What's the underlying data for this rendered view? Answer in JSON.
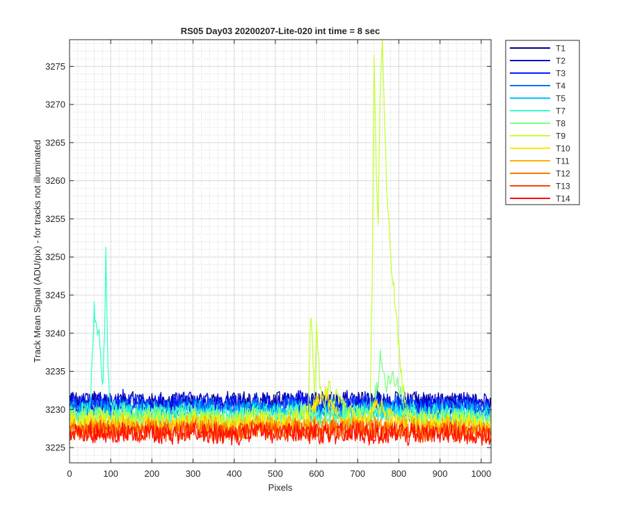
{
  "chart_data": {
    "type": "line",
    "title": "RS05 Day03 20200207-Lite-020 int time = 8 sec",
    "xlabel": "Pixels",
    "ylabel": "Track Mean Signal (ADU/pix) - for tracks not illuminated",
    "xlim": [
      0,
      1024
    ],
    "ylim": [
      3223,
      3278.5
    ],
    "xticks": [
      0,
      100,
      200,
      300,
      400,
      500,
      600,
      700,
      800,
      900,
      1000
    ],
    "yticks": [
      3225,
      3230,
      3235,
      3240,
      3245,
      3250,
      3255,
      3260,
      3265,
      3270,
      3275
    ],
    "grid": "major and minor",
    "legend_position": "outside-right",
    "x_points": [
      0,
      10,
      20,
      30,
      40,
      50,
      55,
      60,
      65,
      70,
      75,
      80,
      85,
      88,
      92,
      95,
      100,
      110,
      120,
      130,
      150,
      200,
      250,
      300,
      350,
      400,
      450,
      500,
      550,
      580,
      585,
      590,
      595,
      600,
      610,
      620,
      630,
      640,
      650,
      660,
      680,
      700,
      720,
      730,
      735,
      740,
      745,
      750,
      755,
      760,
      765,
      770,
      780,
      790,
      800,
      810,
      820,
      830,
      850,
      900,
      950,
      1000,
      1024
    ],
    "series": [
      {
        "name": "T1",
        "color": "#00008f",
        "values": [
          3230.8,
          3231.4,
          3230.6,
          3231.1,
          3230.9,
          3231.3,
          3230.7,
          3231.2,
          3230.8,
          3231.0,
          3231.4,
          3230.6,
          3231.1,
          3230.9,
          3231.2,
          3230.7,
          3231.0,
          3230.8,
          3231.3,
          3230.9,
          3231.1,
          3230.8,
          3231.2,
          3230.7,
          3231.0,
          3231.3,
          3230.8,
          3231.1,
          3230.9,
          3231.2,
          3230.7,
          3231.0,
          3231.4,
          3230.8,
          3231.1,
          3230.9,
          3231.3,
          3230.7,
          3231.0,
          3231.2,
          3230.8,
          3231.1,
          3230.9,
          3231.3,
          3230.7,
          3231.0,
          3231.2,
          3230.8,
          3231.4,
          3230.9,
          3231.1,
          3230.7,
          3231.0,
          3231.3,
          3230.8,
          3231.1,
          3230.9,
          3231.2,
          3230.7,
          3231.0,
          3230.9,
          3230.8,
          3230.6
        ]
      },
      {
        "name": "T2",
        "color": "#0000d5",
        "values": [
          3231.2,
          3230.6,
          3231.5,
          3230.9,
          3231.3,
          3230.8,
          3231.1,
          3231.4,
          3230.7,
          3231.2,
          3230.9,
          3231.5,
          3230.8,
          3231.1,
          3230.7,
          3231.3,
          3230.9,
          3231.2,
          3230.8,
          3231.4,
          3230.7,
          3231.1,
          3230.9,
          3231.3,
          3230.8,
          3231.2,
          3231.0,
          3230.7,
          3231.4,
          3230.9,
          3231.2,
          3230.8,
          3231.1,
          3231.5,
          3230.7,
          3231.2,
          3230.9,
          3231.3,
          3230.8,
          3231.1,
          3231.4,
          3230.7,
          3231.2,
          3230.9,
          3231.3,
          3230.8,
          3231.1,
          3231.4,
          3230.7,
          3231.2,
          3230.9,
          3231.3,
          3230.8,
          3231.1,
          3230.9,
          3231.2,
          3230.7,
          3231.0,
          3231.3,
          3230.8,
          3231.1,
          3230.9,
          3230.7
        ]
      },
      {
        "name": "T3",
        "color": "#001dff",
        "values": [
          3230.5,
          3231.0,
          3230.3,
          3230.8,
          3230.4,
          3230.9,
          3230.6,
          3230.2,
          3230.8,
          3230.5,
          3230.9,
          3230.3,
          3230.7,
          3230.4,
          3230.8,
          3230.5,
          3230.9,
          3230.3,
          3230.7,
          3230.5,
          3230.8,
          3230.4,
          3230.9,
          3230.3,
          3230.6,
          3230.8,
          3230.4,
          3230.7,
          3230.5,
          3230.9,
          3230.3,
          3230.6,
          3230.8,
          3230.4,
          3230.7,
          3230.5,
          3230.9,
          3230.3,
          3230.6,
          3230.8,
          3230.4,
          3230.7,
          3230.5,
          3230.9,
          3230.3,
          3230.6,
          3230.8,
          3230.4,
          3230.7,
          3230.5,
          3230.9,
          3230.3,
          3230.6,
          3230.8,
          3230.4,
          3230.7,
          3230.5,
          3230.8,
          3230.4,
          3230.6,
          3230.5,
          3230.3,
          3230.1
        ]
      },
      {
        "name": "T4",
        "color": "#0071ff",
        "values": [
          3230.1,
          3230.6,
          3229.9,
          3230.4,
          3230.0,
          3230.5,
          3230.2,
          3229.8,
          3230.4,
          3230.1,
          3230.6,
          3229.9,
          3230.3,
          3230.0,
          3230.5,
          3230.2,
          3229.9,
          3230.4,
          3230.1,
          3230.5,
          3229.9,
          3230.3,
          3230.0,
          3230.5,
          3230.2,
          3229.9,
          3230.4,
          3230.1,
          3230.5,
          3229.9,
          3230.3,
          3230.0,
          3230.5,
          3230.2,
          3229.9,
          3230.4,
          3230.1,
          3230.5,
          3229.9,
          3230.3,
          3230.0,
          3230.5,
          3230.2,
          3229.9,
          3230.4,
          3230.1,
          3230.5,
          3229.9,
          3230.3,
          3230.0,
          3230.5,
          3230.2,
          3229.9,
          3230.4,
          3230.1,
          3230.5,
          3229.9,
          3230.3,
          3230.0,
          3230.2,
          3230.1,
          3229.9,
          3229.7
        ]
      },
      {
        "name": "T5",
        "color": "#00c5ff",
        "values": [
          3229.6,
          3230.1,
          3229.4,
          3229.9,
          3229.5,
          3230.0,
          3229.7,
          3229.3,
          3229.9,
          3229.6,
          3230.1,
          3229.4,
          3229.8,
          3229.5,
          3230.0,
          3229.7,
          3229.4,
          3229.9,
          3229.6,
          3230.0,
          3229.4,
          3229.8,
          3229.5,
          3230.0,
          3229.7,
          3229.4,
          3229.9,
          3229.6,
          3230.0,
          3229.4,
          3229.8,
          3229.5,
          3230.0,
          3229.7,
          3229.4,
          3229.9,
          3229.6,
          3230.0,
          3229.4,
          3229.8,
          3229.5,
          3230.0,
          3229.7,
          3229.4,
          3229.9,
          3229.6,
          3230.0,
          3229.4,
          3229.8,
          3229.5,
          3230.0,
          3229.7,
          3229.4,
          3229.9,
          3229.6,
          3230.0,
          3229.4,
          3229.8,
          3229.5,
          3229.7,
          3229.6,
          3229.4,
          3229.2
        ]
      },
      {
        "name": "T7",
        "color": "#36ffc9",
        "values": [
          3229.3,
          3229.8,
          3229.1,
          3229.6,
          3229.2,
          3230.5,
          3236.0,
          3242.8,
          3240.5,
          3241.2,
          3236.5,
          3233.0,
          3239.0,
          3251.3,
          3240.0,
          3233.5,
          3230.8,
          3230.2,
          3229.6,
          3229.9,
          3229.3,
          3229.7,
          3229.2,
          3229.8,
          3229.4,
          3229.1,
          3229.6,
          3229.3,
          3229.7,
          3229.1,
          3229.5,
          3229.2,
          3229.7,
          3229.4,
          3229.1,
          3229.6,
          3229.3,
          3229.7,
          3229.1,
          3229.5,
          3229.2,
          3229.7,
          3229.4,
          3229.1,
          3229.6,
          3229.3,
          3229.7,
          3229.1,
          3229.5,
          3229.2,
          3229.7,
          3229.4,
          3229.1,
          3229.6,
          3229.3,
          3229.7,
          3229.1,
          3229.5,
          3229.2,
          3229.4,
          3229.3,
          3229.1,
          3228.9
        ]
      },
      {
        "name": "T8",
        "color": "#7dff82",
        "values": [
          3228.9,
          3229.4,
          3228.7,
          3229.2,
          3228.8,
          3229.3,
          3229.0,
          3228.6,
          3229.2,
          3228.9,
          3229.4,
          3228.7,
          3229.1,
          3228.8,
          3229.3,
          3229.0,
          3228.7,
          3229.2,
          3228.9,
          3229.3,
          3228.7,
          3229.1,
          3228.8,
          3229.3,
          3229.0,
          3228.7,
          3229.2,
          3228.9,
          3229.3,
          3228.7,
          3229.1,
          3228.8,
          3229.3,
          3229.0,
          3228.7,
          3229.2,
          3228.9,
          3229.3,
          3228.7,
          3229.1,
          3228.8,
          3229.3,
          3229.0,
          3228.7,
          3229.2,
          3230.5,
          3232.5,
          3234.0,
          3236.8,
          3235.5,
          3234.0,
          3232.8,
          3234.2,
          3234.0,
          3233.0,
          3230.5,
          3229.3,
          3229.1,
          3228.8,
          3229.0,
          3228.9,
          3228.7,
          3228.5
        ]
      },
      {
        "name": "T9",
        "color": "#c5ff36",
        "values": [
          3228.5,
          3229.0,
          3228.3,
          3228.8,
          3228.4,
          3228.9,
          3228.6,
          3228.2,
          3228.8,
          3228.5,
          3229.0,
          3228.3,
          3228.7,
          3228.4,
          3228.9,
          3228.6,
          3228.3,
          3228.8,
          3228.5,
          3228.9,
          3228.3,
          3228.7,
          3228.4,
          3228.9,
          3228.6,
          3228.3,
          3228.8,
          3228.5,
          3228.9,
          3230.0,
          3242.0,
          3238.0,
          3232.5,
          3240.5,
          3232.0,
          3230.0,
          3233.0,
          3231.5,
          3232.5,
          3230.5,
          3229.5,
          3229.0,
          3228.8,
          3230.0,
          3246.0,
          3276.0,
          3262.0,
          3255.0,
          3272.0,
          3278.5,
          3268.0,
          3260.0,
          3250.0,
          3244.5,
          3238.0,
          3233.0,
          3229.5,
          3228.7,
          3228.4,
          3228.6,
          3228.5,
          3228.3,
          3228.1
        ]
      },
      {
        "name": "T10",
        "color": "#ffea00",
        "values": [
          3228.1,
          3228.6,
          3227.9,
          3228.4,
          3228.0,
          3228.5,
          3228.2,
          3227.8,
          3228.4,
          3228.1,
          3228.6,
          3227.9,
          3228.3,
          3228.0,
          3228.5,
          3228.2,
          3227.9,
          3228.4,
          3228.1,
          3228.5,
          3227.9,
          3228.3,
          3228.0,
          3228.5,
          3228.2,
          3227.9,
          3228.4,
          3228.1,
          3228.5,
          3228.8,
          3230.5,
          3231.2,
          3229.8,
          3230.6,
          3231.5,
          3232.0,
          3231.0,
          3230.2,
          3229.5,
          3228.8,
          3228.3,
          3228.0,
          3228.5,
          3229.5,
          3230.2,
          3231.0,
          3230.5,
          3229.8,
          3230.3,
          3231.0,
          3230.0,
          3229.2,
          3228.8,
          3228.5,
          3228.2,
          3228.6,
          3227.9,
          3228.3,
          3228.0,
          3228.2,
          3228.1,
          3227.9,
          3227.7
        ]
      },
      {
        "name": "T11",
        "color": "#ffb000",
        "values": [
          3227.7,
          3228.2,
          3227.5,
          3228.0,
          3227.6,
          3228.1,
          3227.8,
          3227.4,
          3228.0,
          3227.7,
          3228.2,
          3227.5,
          3227.9,
          3227.6,
          3228.1,
          3227.8,
          3227.5,
          3228.0,
          3227.7,
          3228.1,
          3227.5,
          3227.9,
          3227.6,
          3228.1,
          3227.8,
          3227.5,
          3228.0,
          3227.7,
          3228.1,
          3227.5,
          3227.9,
          3227.6,
          3228.1,
          3227.8,
          3227.5,
          3228.0,
          3227.7,
          3228.1,
          3227.5,
          3227.9,
          3227.6,
          3228.1,
          3227.8,
          3227.5,
          3228.0,
          3227.7,
          3228.1,
          3227.5,
          3227.9,
          3227.6,
          3228.1,
          3227.8,
          3227.5,
          3228.0,
          3227.7,
          3228.1,
          3227.5,
          3227.9,
          3227.6,
          3227.8,
          3227.7,
          3227.5,
          3227.3
        ]
      },
      {
        "name": "T12",
        "color": "#ff7a00",
        "values": [
          3227.3,
          3227.8,
          3227.1,
          3227.6,
          3227.2,
          3227.7,
          3227.4,
          3227.0,
          3227.6,
          3227.3,
          3227.8,
          3227.1,
          3227.5,
          3227.2,
          3227.7,
          3227.4,
          3227.1,
          3227.6,
          3227.3,
          3227.7,
          3227.1,
          3227.5,
          3227.2,
          3227.7,
          3227.4,
          3227.1,
          3227.6,
          3227.3,
          3227.7,
          3227.1,
          3227.5,
          3227.2,
          3227.7,
          3227.4,
          3227.1,
          3227.6,
          3227.3,
          3227.7,
          3227.1,
          3227.5,
          3227.2,
          3227.7,
          3227.4,
          3227.1,
          3227.6,
          3227.3,
          3227.7,
          3227.1,
          3227.5,
          3227.2,
          3227.7,
          3227.4,
          3227.1,
          3227.6,
          3227.3,
          3227.7,
          3227.1,
          3227.5,
          3227.2,
          3227.4,
          3227.3,
          3227.1,
          3226.9
        ]
      },
      {
        "name": "T13",
        "color": "#ff4000",
        "values": [
          3227.0,
          3227.5,
          3226.8,
          3227.3,
          3226.9,
          3227.4,
          3227.1,
          3226.7,
          3227.3,
          3227.0,
          3227.5,
          3226.8,
          3227.2,
          3226.9,
          3227.4,
          3227.1,
          3226.8,
          3227.3,
          3227.0,
          3227.4,
          3226.8,
          3227.2,
          3226.9,
          3227.4,
          3227.1,
          3226.8,
          3227.3,
          3227.0,
          3227.4,
          3226.8,
          3227.2,
          3226.9,
          3227.4,
          3227.1,
          3226.8,
          3227.3,
          3227.0,
          3227.4,
          3226.8,
          3227.2,
          3226.9,
          3227.4,
          3227.1,
          3226.8,
          3227.3,
          3227.0,
          3227.4,
          3226.8,
          3227.2,
          3226.9,
          3227.4,
          3227.1,
          3226.8,
          3227.3,
          3227.0,
          3227.4,
          3226.8,
          3227.2,
          3226.9,
          3227.1,
          3227.0,
          3226.8,
          3226.6
        ]
      },
      {
        "name": "T14",
        "color": "#ff0a00",
        "values": [
          3226.7,
          3227.2,
          3226.5,
          3227.0,
          3226.6,
          3227.1,
          3226.8,
          3226.4,
          3227.0,
          3226.7,
          3227.2,
          3226.5,
          3226.9,
          3226.6,
          3227.1,
          3226.8,
          3226.5,
          3227.0,
          3226.7,
          3227.1,
          3226.5,
          3226.9,
          3226.6,
          3227.1,
          3226.8,
          3226.5,
          3227.0,
          3226.7,
          3227.1,
          3226.5,
          3226.9,
          3226.6,
          3227.1,
          3226.8,
          3226.5,
          3227.0,
          3226.7,
          3227.1,
          3226.5,
          3226.9,
          3226.6,
          3227.1,
          3226.8,
          3226.5,
          3227.0,
          3226.7,
          3227.1,
          3226.5,
          3226.9,
          3226.6,
          3227.1,
          3226.8,
          3226.5,
          3227.0,
          3226.7,
          3227.1,
          3226.5,
          3226.9,
          3226.6,
          3226.8,
          3226.7,
          3226.5,
          3226.3
        ]
      }
    ]
  }
}
